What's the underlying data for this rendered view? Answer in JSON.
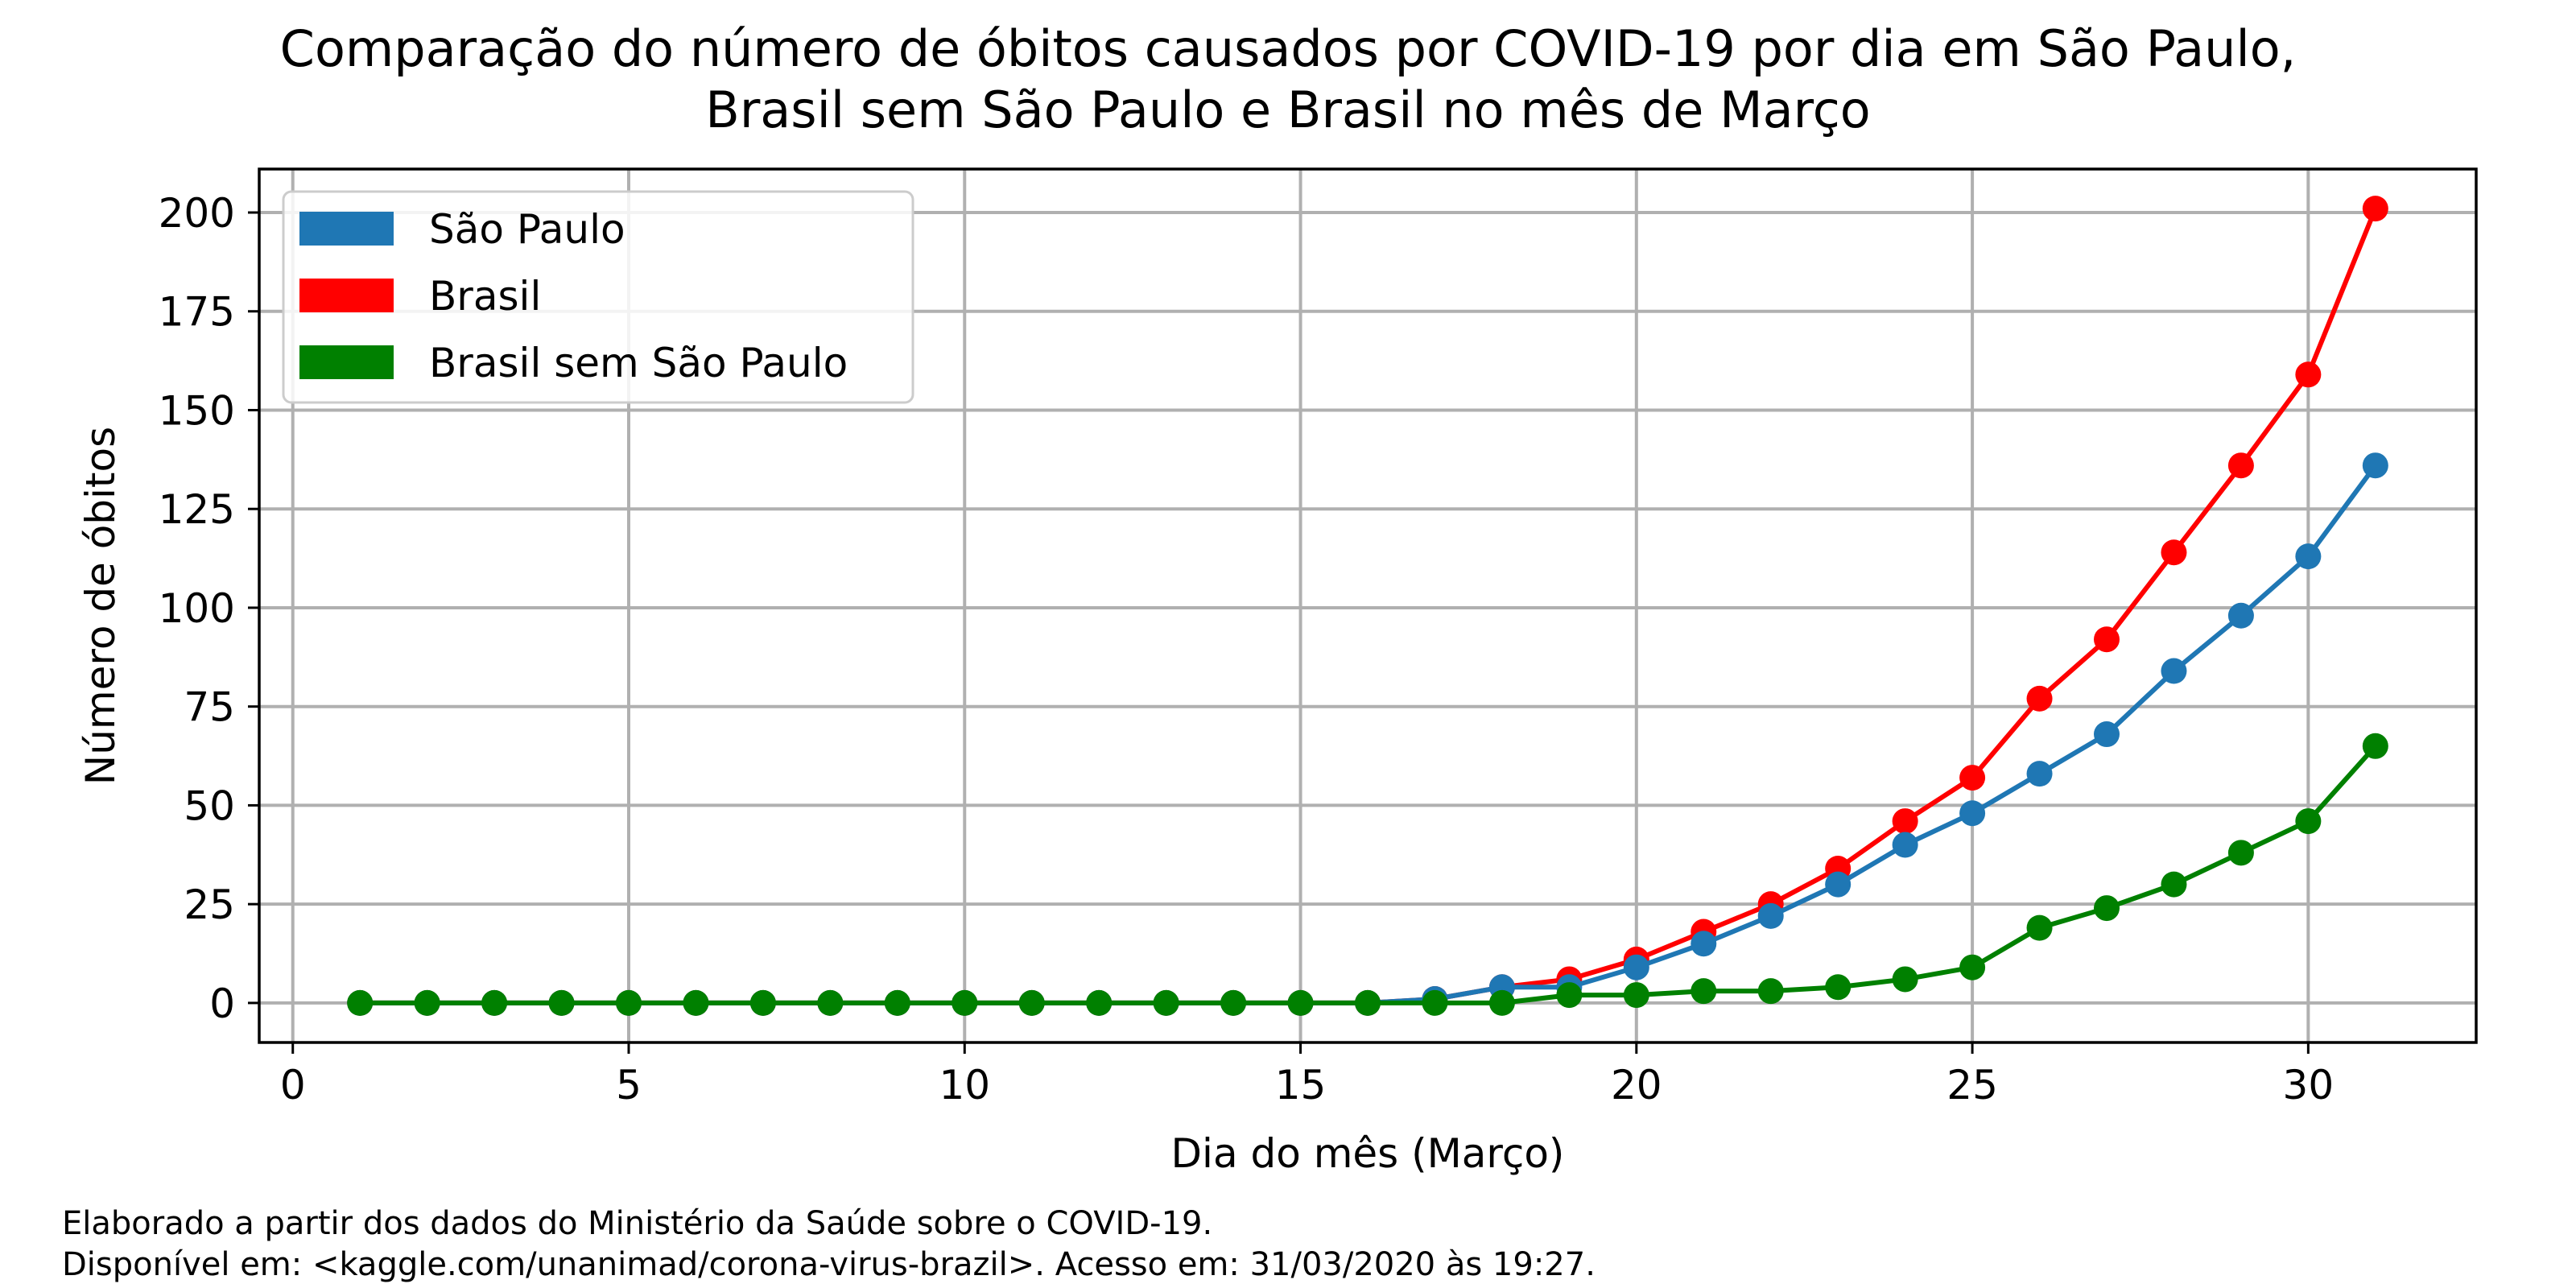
{
  "chart_data": {
    "type": "line",
    "title_lines": [
      "Comparação do número de óbitos causados por COVID-19 por dia em São Paulo,",
      "Brasil sem São Paulo e Brasil no mês de Março"
    ],
    "xlabel": "Dia do mês (Março)",
    "ylabel": "Número de óbitos",
    "xlim": [
      -0.5,
      32.5
    ],
    "ylim": [
      -10,
      211
    ],
    "x_ticks": [
      0,
      5,
      10,
      15,
      20,
      25,
      30
    ],
    "y_ticks": [
      0,
      25,
      50,
      75,
      100,
      125,
      150,
      175,
      200
    ],
    "grid": true,
    "legend_position": "top-left",
    "x": [
      1,
      2,
      3,
      4,
      5,
      6,
      7,
      8,
      9,
      10,
      11,
      12,
      13,
      14,
      15,
      16,
      17,
      18,
      19,
      20,
      21,
      22,
      23,
      24,
      25,
      26,
      27,
      28,
      29,
      30,
      31
    ],
    "series": [
      {
        "name": "Brasil",
        "color": "#ff0000",
        "draw_order": 1,
        "values": [
          0,
          0,
          0,
          0,
          0,
          0,
          0,
          0,
          0,
          0,
          0,
          0,
          0,
          0,
          0,
          0,
          1,
          4,
          6,
          11,
          18,
          25,
          34,
          46,
          57,
          77,
          92,
          114,
          136,
          159,
          201
        ]
      },
      {
        "name": "São Paulo",
        "color": "#1f77b4",
        "draw_order": 2,
        "values": [
          0,
          0,
          0,
          0,
          0,
          0,
          0,
          0,
          0,
          0,
          0,
          0,
          0,
          0,
          0,
          0,
          1,
          4,
          4,
          9,
          15,
          22,
          30,
          40,
          48,
          58,
          68,
          84,
          98,
          113,
          136
        ]
      },
      {
        "name": "Brasil sem São Paulo",
        "color": "#008000",
        "draw_order": 3,
        "values": [
          0,
          0,
          0,
          0,
          0,
          0,
          0,
          0,
          0,
          0,
          0,
          0,
          0,
          0,
          0,
          0,
          0,
          0,
          2,
          2,
          3,
          3,
          4,
          6,
          9,
          19,
          24,
          30,
          38,
          46,
          65
        ]
      }
    ],
    "legend_order": [
      "São Paulo",
      "Brasil",
      "Brasil sem São Paulo"
    ]
  },
  "footnote": {
    "line1": "Elaborado a partir dos dados do Ministério da Saúde sobre o COVID-19.",
    "line2": "Disponível em: <kaggle.com/unanimad/corona-virus-brazil>. Acesso em: 31/03/2020 às 19:27."
  }
}
